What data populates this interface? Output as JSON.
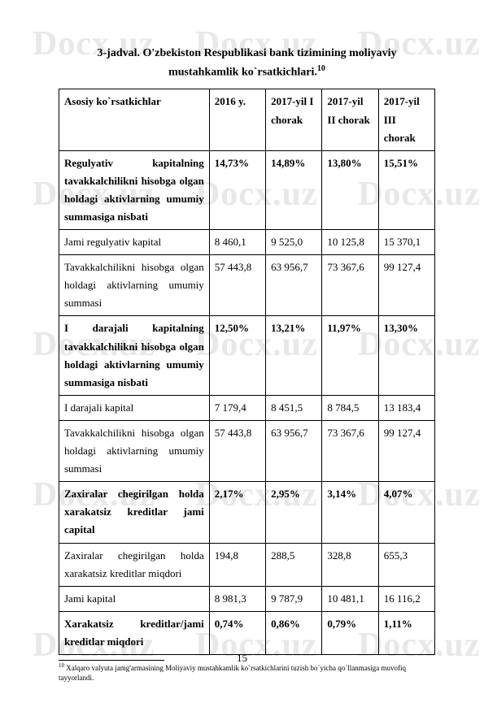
{
  "watermark_text": "Docx.uz",
  "title_line1": "3-jadval. O'zbekiston Respublikasi bank tizimining moliyaviy",
  "title_line2": "mustahkamlik ko`rsatkichlari.",
  "title_sup": "10",
  "table": {
    "headers": [
      "Asosiy ko`rsatkichlar",
      "2016 y.",
      "2017-yil I chorak",
      "2017-yil II chorak",
      "2017-yil III chorak"
    ],
    "rows": [
      {
        "bold": true,
        "cells": [
          "Regulyativ kapitalning tavakkalchilikni hisobga olgan holdagi aktivlarning umumiy summasiga nisbati",
          "14,73%",
          "14,89%",
          "13,80%",
          "15,51%"
        ]
      },
      {
        "bold": false,
        "cells": [
          "Jami regulyativ kapital",
          "8 460,1",
          "9 525,0",
          "10 125,8",
          "15 370,1"
        ]
      },
      {
        "bold": false,
        "cells": [
          "Tavakkalchilikni hisobga olgan holdagi aktivlarning umumiy summasi",
          "57 443,8",
          "63 956,7",
          "73 367,6",
          "99 127,4"
        ]
      },
      {
        "bold": true,
        "cells": [
          "I darajali kapitalning tavakkalchilikni hisobga olgan holdagi aktivlarning umumiy summasiga nisbati",
          "12,50%",
          "13,21%",
          "11,97%",
          "13,30%"
        ]
      },
      {
        "bold": false,
        "cells": [
          "I darajali kapital",
          "7 179,4",
          "8 451,5",
          "8 784,5",
          "13 183,4"
        ]
      },
      {
        "bold": false,
        "cells": [
          "Tavakkalchilikni hisobga olgan holdagi aktivlarning umumiy summasi",
          "57 443,8",
          "63 956,7",
          "73 367,6",
          "99 127,4"
        ]
      },
      {
        "bold": true,
        "cells": [
          "Zaxiralar chegirilgan holda xarakatsiz kreditlar jami capital",
          "2,17%",
          "2,95%",
          "3,14%",
          "4,07%"
        ]
      },
      {
        "bold": false,
        "cells": [
          "Zaxiralar chegirilgan holda xarakatsiz kreditlar miqdori",
          "194,8",
          "288,5",
          "328,8",
          "655,3"
        ]
      },
      {
        "bold": false,
        "cells": [
          "Jami kapital",
          "8 981,3",
          "9 787,9",
          "10 481,1",
          "16 116,2"
        ]
      },
      {
        "bold": true,
        "cells": [
          "Xarakatsiz kreditlar/jami kreditlar miqdori",
          "0,74%",
          "0,86%",
          "0,79%",
          "1,11%"
        ]
      }
    ]
  },
  "footnote_sup": "10",
  "footnote_text": " Xalqaro valyuta jamg'armasining Moliyaviy mustahkamlik ko`rsatkichlarini tuzish bo`yicha qo`llanmasiga muvofiq tayyorlandi.",
  "page_number": "15"
}
